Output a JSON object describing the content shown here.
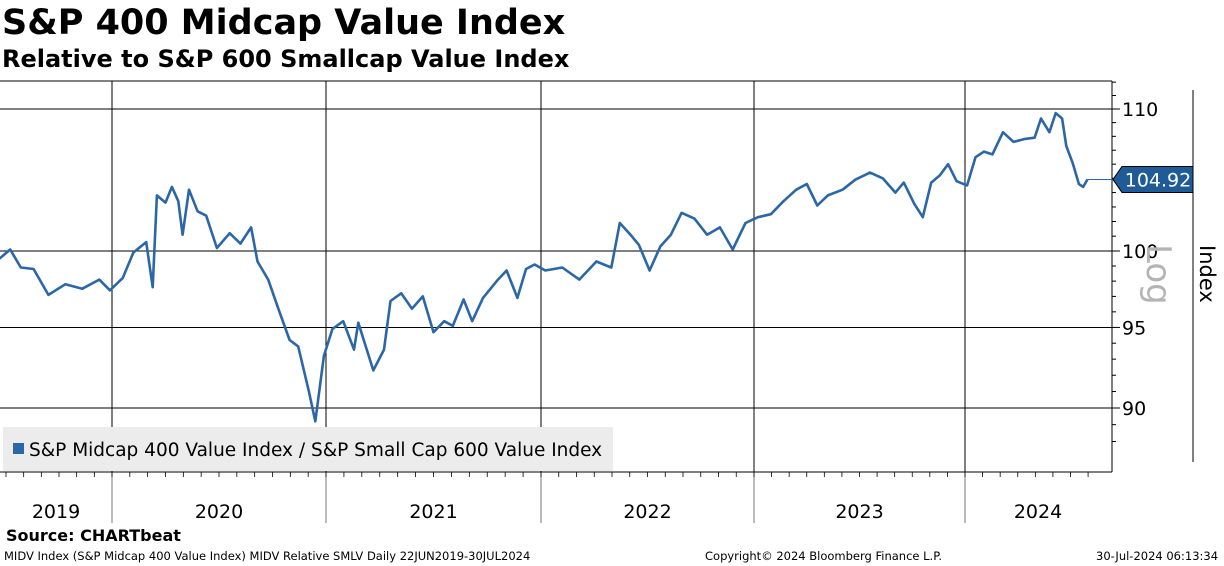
{
  "header": {
    "title": "S&P 400 Midcap Value Index",
    "subtitle": "Relative to S&P 600 Smallcap Value Index"
  },
  "chart_data": {
    "type": "line",
    "title": "S&P 400 Midcap Value Index",
    "subtitle": "Relative to S&P 600 Smallcap Value Index",
    "xlabel": "",
    "ylabel": "Index",
    "scale_label": "Log",
    "y_scale": "log",
    "ylim": [
      86.5,
      113.5
    ],
    "y_ticks": [
      90,
      95,
      100,
      110
    ],
    "x_tick_labels": [
      "2019",
      "2020",
      "2021",
      "2022",
      "2023",
      "2024"
    ],
    "xlim": [
      2019.47,
      2024.64
    ],
    "legend": "bottom-left",
    "last_value_label": "104.92",
    "series": [
      {
        "name": "S&P Midcap 400 Value Index / S&P Small Cap 600 Value Index",
        "color": "#2b67a7",
        "points": [
          [
            2019.47,
            99.5
          ],
          [
            2019.52,
            100.1
          ],
          [
            2019.57,
            98.9
          ],
          [
            2019.63,
            98.8
          ],
          [
            2019.7,
            97.1
          ],
          [
            2019.78,
            97.8
          ],
          [
            2019.86,
            97.5
          ],
          [
            2019.94,
            98.1
          ],
          [
            2019.99,
            97.4
          ],
          [
            2020.05,
            98.2
          ],
          [
            2020.1,
            99.9
          ],
          [
            2020.16,
            100.6
          ],
          [
            2020.19,
            97.6
          ],
          [
            2020.21,
            103.8
          ],
          [
            2020.25,
            103.3
          ],
          [
            2020.28,
            104.4
          ],
          [
            2020.31,
            103.4
          ],
          [
            2020.33,
            101.1
          ],
          [
            2020.36,
            104.2
          ],
          [
            2020.4,
            102.7
          ],
          [
            2020.44,
            102.4
          ],
          [
            2020.49,
            100.2
          ],
          [
            2020.55,
            101.2
          ],
          [
            2020.6,
            100.5
          ],
          [
            2020.65,
            101.6
          ],
          [
            2020.68,
            99.3
          ],
          [
            2020.73,
            98.1
          ],
          [
            2020.78,
            96.1
          ],
          [
            2020.83,
            94.2
          ],
          [
            2020.87,
            93.8
          ],
          [
            2020.92,
            91.0
          ],
          [
            2020.95,
            89.2
          ],
          [
            2020.99,
            93.2
          ],
          [
            2021.03,
            94.9
          ],
          [
            2021.08,
            95.4
          ],
          [
            2021.13,
            93.6
          ],
          [
            2021.15,
            95.3
          ],
          [
            2021.22,
            92.3
          ],
          [
            2021.27,
            93.6
          ],
          [
            2021.3,
            96.7
          ],
          [
            2021.35,
            97.2
          ],
          [
            2021.4,
            96.2
          ],
          [
            2021.45,
            97.0
          ],
          [
            2021.5,
            94.7
          ],
          [
            2021.55,
            95.4
          ],
          [
            2021.59,
            95.1
          ],
          [
            2021.64,
            96.8
          ],
          [
            2021.68,
            95.4
          ],
          [
            2021.73,
            96.9
          ],
          [
            2021.8,
            98.1
          ],
          [
            2021.84,
            98.7
          ],
          [
            2021.89,
            96.9
          ],
          [
            2021.93,
            98.8
          ],
          [
            2021.97,
            99.1
          ],
          [
            2022.02,
            98.7
          ],
          [
            2022.1,
            98.9
          ],
          [
            2022.18,
            98.1
          ],
          [
            2022.26,
            99.3
          ],
          [
            2022.33,
            98.9
          ],
          [
            2022.37,
            101.9
          ],
          [
            2022.42,
            101.1
          ],
          [
            2022.46,
            100.4
          ],
          [
            2022.51,
            98.7
          ],
          [
            2022.56,
            100.3
          ],
          [
            2022.61,
            101.1
          ],
          [
            2022.66,
            102.6
          ],
          [
            2022.72,
            102.2
          ],
          [
            2022.78,
            101.1
          ],
          [
            2022.84,
            101.6
          ],
          [
            2022.9,
            100.1
          ],
          [
            2022.96,
            101.9
          ],
          [
            2023.02,
            102.3
          ],
          [
            2023.08,
            102.5
          ],
          [
            2023.14,
            103.4
          ],
          [
            2023.2,
            104.2
          ],
          [
            2023.25,
            104.6
          ],
          [
            2023.3,
            103.1
          ],
          [
            2023.35,
            103.8
          ],
          [
            2023.42,
            104.2
          ],
          [
            2023.48,
            104.9
          ],
          [
            2023.55,
            105.4
          ],
          [
            2023.61,
            105.0
          ],
          [
            2023.67,
            104.0
          ],
          [
            2023.71,
            104.7
          ],
          [
            2023.76,
            103.2
          ],
          [
            2023.8,
            102.3
          ],
          [
            2023.84,
            104.7
          ],
          [
            2023.88,
            105.2
          ],
          [
            2023.92,
            106.0
          ],
          [
            2023.96,
            104.8
          ],
          [
            2024.01,
            104.5
          ],
          [
            2024.05,
            106.5
          ],
          [
            2024.09,
            106.9
          ],
          [
            2024.13,
            106.7
          ],
          [
            2024.18,
            108.3
          ],
          [
            2024.23,
            107.6
          ],
          [
            2024.28,
            107.8
          ],
          [
            2024.33,
            107.9
          ],
          [
            2024.36,
            109.3
          ],
          [
            2024.4,
            108.3
          ],
          [
            2024.43,
            109.7
          ],
          [
            2024.46,
            109.3
          ],
          [
            2024.48,
            107.3
          ],
          [
            2024.51,
            106.1
          ],
          [
            2024.54,
            104.6
          ],
          [
            2024.56,
            104.4
          ],
          [
            2024.58,
            104.92
          ]
        ]
      }
    ]
  },
  "footer": {
    "source": "Source: CHARTbeat",
    "ticker_info": "MIDV Index (S&P Midcap 400 Value Index) MIDV Relative SMLV  Daily 22JUN2019-30JUL2024",
    "copyright": "Copyright© 2024 Bloomberg Finance L.P.",
    "timestamp": "30-Jul-2024 06:13:34"
  }
}
